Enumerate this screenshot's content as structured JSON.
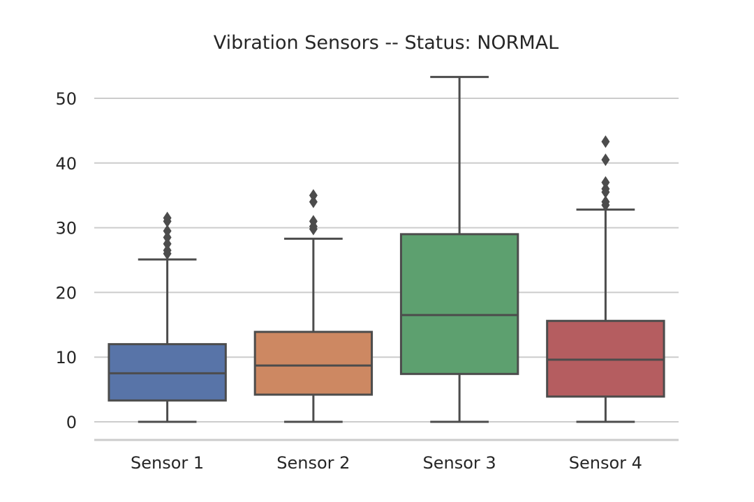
{
  "chart_data": {
    "type": "box",
    "title": "Vibration Sensors -- Status: NORMAL",
    "xlabel": "",
    "ylabel": "",
    "ylim": [
      -2.8,
      55
    ],
    "yticks": [
      0,
      10,
      20,
      30,
      40,
      50
    ],
    "ytick_labels": [
      "0",
      "10",
      "20",
      "30",
      "40",
      "50"
    ],
    "grid": "y",
    "categories": [
      "Sensor 1",
      "Sensor 2",
      "Sensor 3",
      "Sensor 4"
    ],
    "series": [
      {
        "category": "Sensor 1",
        "color": "#5874a8",
        "whisker_low": 0,
        "q1": 3.3,
        "median": 7.5,
        "q3": 12.0,
        "whisker_high": 25.1,
        "outliers": [
          26.0,
          26.5,
          27.5,
          28.5,
          29.5,
          31.0,
          31.5
        ]
      },
      {
        "category": "Sensor 2",
        "color": "#cd8862",
        "whisker_low": 0,
        "q1": 4.2,
        "median": 8.7,
        "q3": 13.9,
        "whisker_high": 28.3,
        "outliers": [
          29.8,
          30.2,
          31.0,
          34.0,
          35.0
        ]
      },
      {
        "category": "Sensor 3",
        "color": "#5da06f",
        "whisker_low": 0,
        "q1": 7.4,
        "median": 16.5,
        "q3": 29.0,
        "whisker_high": 53.3,
        "outliers": []
      },
      {
        "category": "Sensor 4",
        "color": "#b55d60",
        "whisker_low": 0,
        "q1": 3.9,
        "median": 9.6,
        "q3": 15.6,
        "whisker_high": 32.8,
        "outliers": [
          33.5,
          34.0,
          35.5,
          36.0,
          37.0,
          40.5,
          43.3
        ]
      }
    ]
  }
}
